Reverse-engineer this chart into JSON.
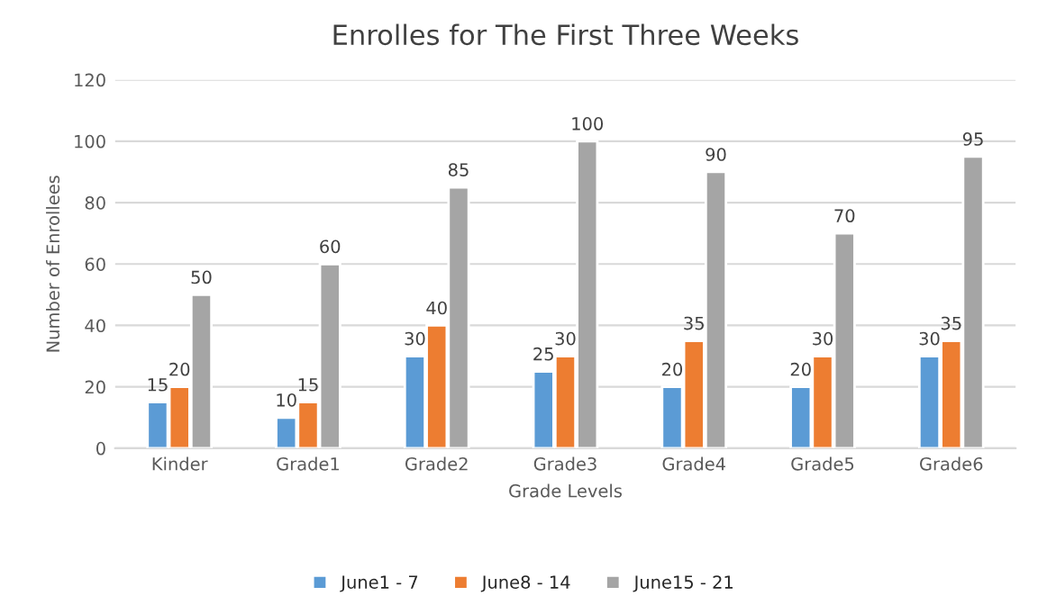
{
  "chart_data": {
    "type": "bar",
    "title": "Enrolles for The First Three Weeks",
    "xlabel": "Grade Levels",
    "ylabel": "Number of Enrollees",
    "categories": [
      "Kinder",
      "Grade1",
      "Grade2",
      "Grade3",
      "Grade4",
      "Grade5",
      "Grade6"
    ],
    "series": [
      {
        "name": "June1 - 7",
        "color": "#5b9bd5",
        "values": [
          15,
          10,
          30,
          25,
          20,
          20,
          30
        ]
      },
      {
        "name": "June8 - 14",
        "color": "#ed7d31",
        "values": [
          20,
          15,
          40,
          30,
          35,
          30,
          35
        ]
      },
      {
        "name": "June15 - 21",
        "color": "#a5a5a5",
        "values": [
          50,
          60,
          85,
          100,
          90,
          70,
          95
        ]
      }
    ],
    "ylim": [
      0,
      120
    ],
    "yticks": [
      0,
      20,
      40,
      60,
      80,
      100,
      120
    ],
    "grid": "y",
    "legend": "bottom",
    "data_labels": true
  }
}
